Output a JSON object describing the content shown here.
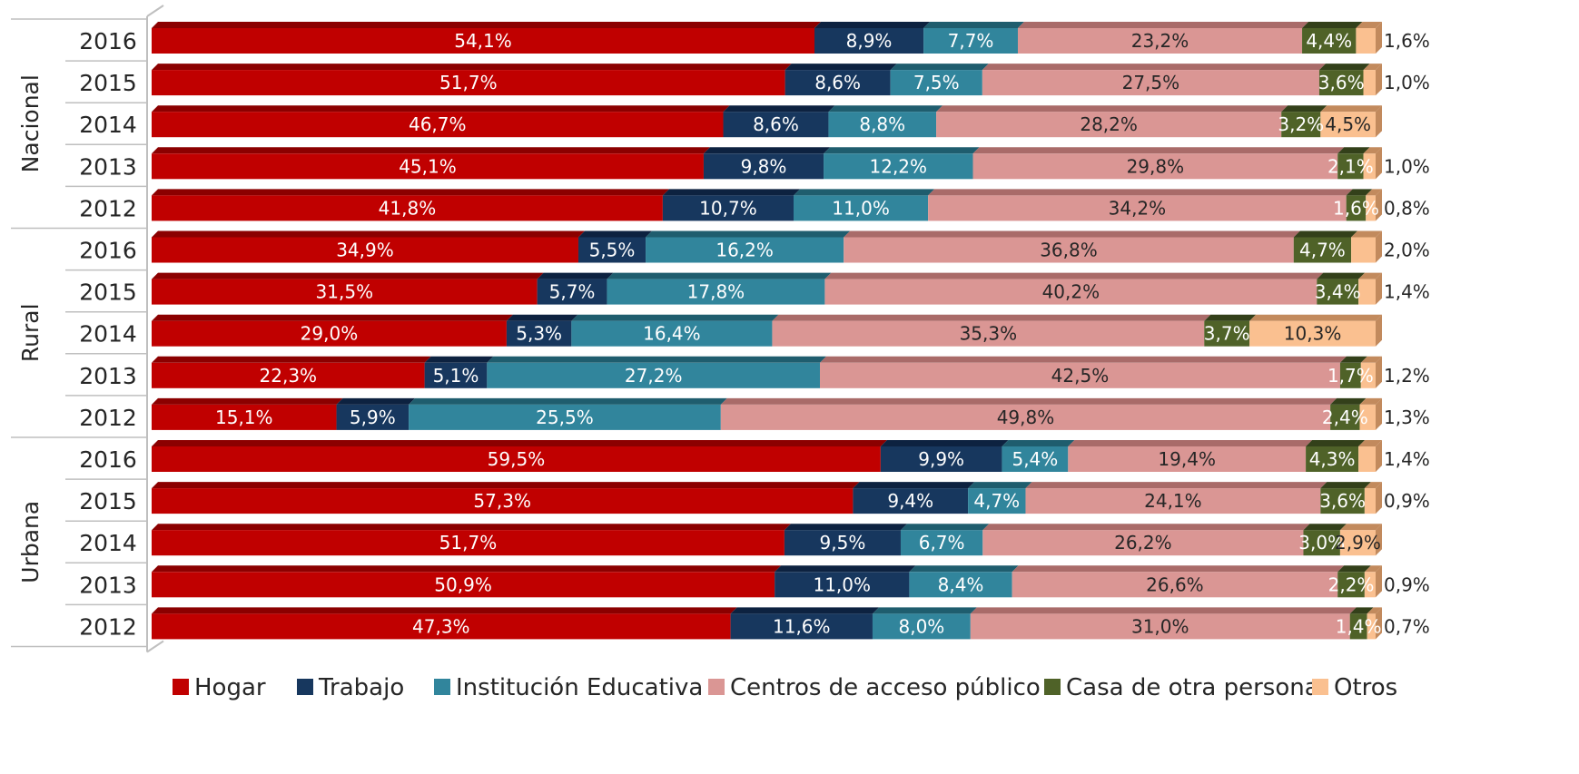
{
  "chart_data": {
    "type": "bar",
    "orientation": "horizontal",
    "stacked": "percent",
    "title": "",
    "xlabel": "",
    "ylabel": "",
    "xlim": [
      0,
      100
    ],
    "legend_position": "bottom",
    "grid": false,
    "groups": [
      {
        "name": "Nacional",
        "rows": [
          {
            "year": "2016",
            "values": [
              54.1,
              8.9,
              7.7,
              23.2,
              4.4,
              1.6
            ],
            "labels": [
              "54,1%",
              "8,9%",
              "7,7%",
              "23,2%",
              "4,4%",
              "1,6%"
            ]
          },
          {
            "year": "2015",
            "values": [
              51.7,
              8.6,
              7.5,
              27.5,
              3.6,
              1.0
            ],
            "labels": [
              "51,7%",
              "8,6%",
              "7,5%",
              "27,5%",
              "3,6%",
              "1,0%"
            ]
          },
          {
            "year": "2014",
            "values": [
              46.7,
              8.6,
              8.8,
              28.2,
              3.2,
              4.5
            ],
            "labels": [
              "46,7%",
              "8,6%",
              "8,8%",
              "28,2%",
              "3,2%",
              "4,5%"
            ]
          },
          {
            "year": "2013",
            "values": [
              45.1,
              9.8,
              12.2,
              29.8,
              2.1,
              1.0
            ],
            "labels": [
              "45,1%",
              "9,8%",
              "12,2%",
              "29,8%",
              "2,1%",
              "1,0%"
            ]
          },
          {
            "year": "2012",
            "values": [
              41.8,
              10.7,
              11.0,
              34.2,
              1.6,
              0.8
            ],
            "labels": [
              "41,8%",
              "10,7%",
              "11,0%",
              "34,2%",
              "1,6%",
              "0,8%"
            ]
          }
        ]
      },
      {
        "name": "Rural",
        "rows": [
          {
            "year": "2016",
            "values": [
              34.9,
              5.5,
              16.2,
              36.8,
              4.7,
              2.0
            ],
            "labels": [
              "34,9%",
              "5,5%",
              "16,2%",
              "36,8%",
              "4,7%",
              "2,0%"
            ]
          },
          {
            "year": "2015",
            "values": [
              31.5,
              5.7,
              17.8,
              40.2,
              3.4,
              1.4
            ],
            "labels": [
              "31,5%",
              "5,7%",
              "17,8%",
              "40,2%",
              "3,4%",
              "1,4%"
            ]
          },
          {
            "year": "2014",
            "values": [
              29.0,
              5.3,
              16.4,
              35.3,
              3.7,
              10.3
            ],
            "labels": [
              "29,0%",
              "5,3%",
              "16,4%",
              "35,3%",
              "3,7%",
              "10,3%"
            ]
          },
          {
            "year": "2013",
            "values": [
              22.3,
              5.1,
              27.2,
              42.5,
              1.7,
              1.2
            ],
            "labels": [
              "22,3%",
              "5,1%",
              "27,2%",
              "42,5%",
              "1,7%",
              "1,2%"
            ]
          },
          {
            "year": "2012",
            "values": [
              15.1,
              5.9,
              25.5,
              49.8,
              2.4,
              1.3
            ],
            "labels": [
              "15,1%",
              "5,9%",
              "25,5%",
              "49,8%",
              "2,4%",
              "1,3%"
            ]
          }
        ]
      },
      {
        "name": "Urbana",
        "rows": [
          {
            "year": "2016",
            "values": [
              59.5,
              9.9,
              5.4,
              19.4,
              4.3,
              1.4
            ],
            "labels": [
              "59,5%",
              "9,9%",
              "5,4%",
              "19,4%",
              "4,3%",
              "1,4%"
            ]
          },
          {
            "year": "2015",
            "values": [
              57.3,
              9.4,
              4.7,
              24.1,
              3.6,
              0.9
            ],
            "labels": [
              "57,3%",
              "9,4%",
              "4,7%",
              "24,1%",
              "3,6%",
              "0,9%"
            ]
          },
          {
            "year": "2014",
            "values": [
              51.7,
              9.5,
              6.7,
              26.2,
              3.0,
              2.9
            ],
            "labels": [
              "51,7%",
              "9,5%",
              "6,7%",
              "26,2%",
              "3,0%",
              "2,9%"
            ]
          },
          {
            "year": "2013",
            "values": [
              50.9,
              11.0,
              8.4,
              26.6,
              2.2,
              0.9
            ],
            "labels": [
              "50,9%",
              "11,0%",
              "8,4%",
              "26,6%",
              "2,2%",
              "0,9%"
            ]
          },
          {
            "year": "2012",
            "values": [
              47.3,
              11.6,
              8.0,
              31.0,
              1.4,
              0.7
            ],
            "labels": [
              "47,3%",
              "11,6%",
              "8,0%",
              "31,0%",
              "1,4%",
              "0,7%"
            ]
          }
        ]
      }
    ],
    "series": [
      {
        "name": "Hogar",
        "color": "#c00000",
        "shade": "#8b0000",
        "text_color": "#ffffff"
      },
      {
        "name": "Trabajo",
        "color": "#17375e",
        "shade": "#0d2240",
        "text_color": "#ffffff"
      },
      {
        "name": "Institución Educativa",
        "color": "#31859c",
        "shade": "#1f5d6e",
        "text_color": "#ffffff"
      },
      {
        "name": "Centros de acceso público",
        "color": "#da9694",
        "shade": "#a96b69",
        "text_color": "#262626"
      },
      {
        "name": "Casa de otra persona",
        "color": "#4f6228",
        "shade": "#33401a",
        "text_color": "#ffffff"
      },
      {
        "name": "Otros",
        "color": "#fac090",
        "shade": "#c28a5d",
        "text_color": "#262626"
      }
    ]
  }
}
